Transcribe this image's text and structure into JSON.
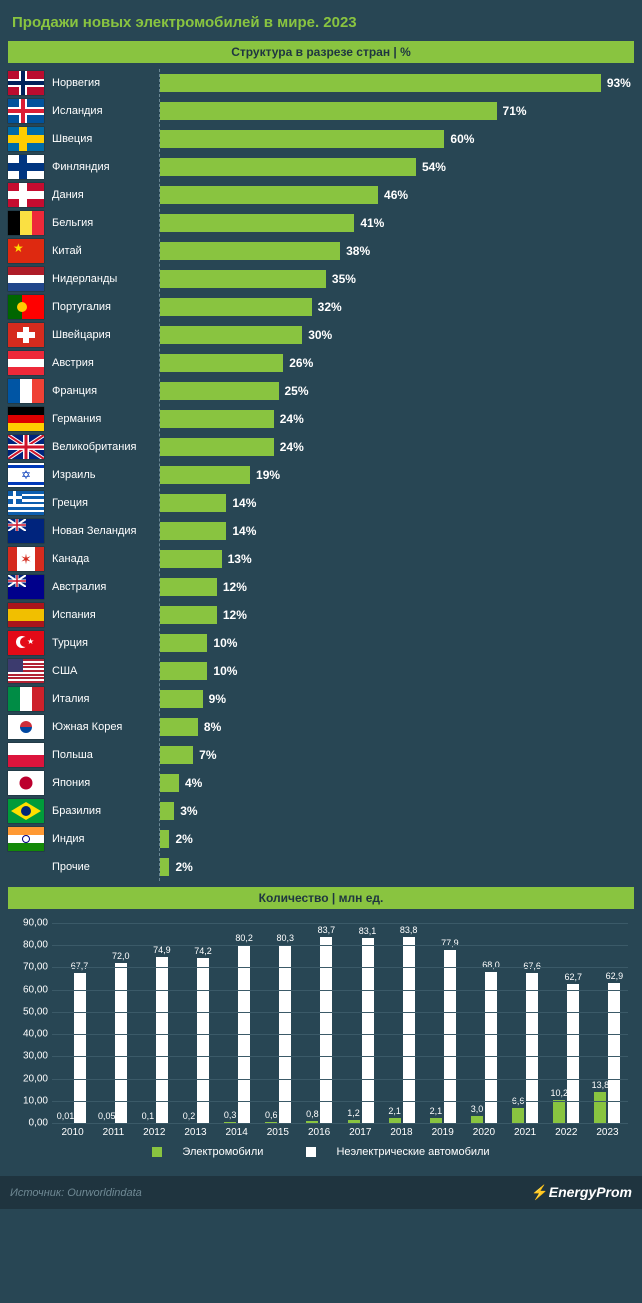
{
  "colors": {
    "background": "#284654",
    "accent": "#89c440",
    "bar_fill": "#89c440",
    "grid": "#3b5a68",
    "non_ev_bar": "#ffffff",
    "title_color": "#89c440",
    "footer_bg": "#1f343f",
    "source_color": "#6f8994"
  },
  "title": "Продажи новых электромобилей в мире. 2023",
  "hbar_chart": {
    "type": "horizontal_bar",
    "header": "Структура в разрезе стран | %",
    "max": 100,
    "bar_color": "#89c440",
    "rows": [
      {
        "country": "Норвегия",
        "value": 93,
        "label": "93%"
      },
      {
        "country": "Исландия",
        "value": 71,
        "label": "71%"
      },
      {
        "country": "Швеция",
        "value": 60,
        "label": "60%"
      },
      {
        "country": "Финляндия",
        "value": 54,
        "label": "54%"
      },
      {
        "country": "Дания",
        "value": 46,
        "label": "46%"
      },
      {
        "country": "Бельгия",
        "value": 41,
        "label": "41%"
      },
      {
        "country": "Китай",
        "value": 38,
        "label": "38%"
      },
      {
        "country": "Нидерланды",
        "value": 35,
        "label": "35%"
      },
      {
        "country": "Португалия",
        "value": 32,
        "label": "32%"
      },
      {
        "country": "Швейцария",
        "value": 30,
        "label": "30%"
      },
      {
        "country": "Австрия",
        "value": 26,
        "label": "26%"
      },
      {
        "country": "Франция",
        "value": 25,
        "label": "25%"
      },
      {
        "country": "Германия",
        "value": 24,
        "label": "24%"
      },
      {
        "country": "Великобритания",
        "value": 24,
        "label": "24%"
      },
      {
        "country": "Израиль",
        "value": 19,
        "label": "19%"
      },
      {
        "country": "Греция",
        "value": 14,
        "label": "14%"
      },
      {
        "country": "Новая Зеландия",
        "value": 14,
        "label": "14%"
      },
      {
        "country": "Канада",
        "value": 13,
        "label": "13%"
      },
      {
        "country": "Австралия",
        "value": 12,
        "label": "12%"
      },
      {
        "country": "Испания",
        "value": 12,
        "label": "12%"
      },
      {
        "country": "Турция",
        "value": 10,
        "label": "10%"
      },
      {
        "country": "США",
        "value": 10,
        "label": "10%"
      },
      {
        "country": "Италия",
        "value": 9,
        "label": "9%"
      },
      {
        "country": "Южная Корея",
        "value": 8,
        "label": "8%"
      },
      {
        "country": "Польша",
        "value": 7,
        "label": "7%"
      },
      {
        "country": "Япония",
        "value": 4,
        "label": "4%"
      },
      {
        "country": "Бразилия",
        "value": 3,
        "label": "3%"
      },
      {
        "country": "Индия",
        "value": 2,
        "label": "2%"
      },
      {
        "country": "Прочие",
        "value": 2,
        "label": "2%",
        "no_flag": true
      }
    ]
  },
  "col_chart": {
    "type": "grouped_column",
    "header": "Количество | млн ед.",
    "ymax": 90,
    "ytick_step": 10,
    "yticks": [
      "0,00",
      "10,00",
      "20,00",
      "30,00",
      "40,00",
      "50,00",
      "60,00",
      "70,00",
      "80,00",
      "90,00"
    ],
    "ev_color": "#89c440",
    "non_color": "#ffffff",
    "legend": {
      "ev": "Электромобили",
      "non": "Неэлектрические автомобили"
    },
    "years": [
      {
        "year": "2010",
        "ev": 0.01,
        "ev_label": "0,01",
        "non": 67.7,
        "non_label": "67,7"
      },
      {
        "year": "2011",
        "ev": 0.05,
        "ev_label": "0,05",
        "non": 72.0,
        "non_label": "72,0"
      },
      {
        "year": "2012",
        "ev": 0.1,
        "ev_label": "0,1",
        "non": 74.9,
        "non_label": "74,9"
      },
      {
        "year": "2013",
        "ev": 0.2,
        "ev_label": "0,2",
        "non": 74.2,
        "non_label": "74,2"
      },
      {
        "year": "2014",
        "ev": 0.3,
        "ev_label": "0,3",
        "non": 80.2,
        "non_label": "80,2"
      },
      {
        "year": "2015",
        "ev": 0.6,
        "ev_label": "0,6",
        "non": 80.3,
        "non_label": "80,3"
      },
      {
        "year": "2016",
        "ev": 0.8,
        "ev_label": "0,8",
        "non": 83.7,
        "non_label": "83,7"
      },
      {
        "year": "2017",
        "ev": 1.2,
        "ev_label": "1,2",
        "non": 83.1,
        "non_label": "83,1"
      },
      {
        "year": "2018",
        "ev": 2.1,
        "ev_label": "2,1",
        "non": 83.8,
        "non_label": "83,8"
      },
      {
        "year": "2019",
        "ev": 2.1,
        "ev_label": "2,1",
        "non": 77.9,
        "non_label": "77,9"
      },
      {
        "year": "2020",
        "ev": 3.0,
        "ev_label": "3,0",
        "non": 68.0,
        "non_label": "68,0"
      },
      {
        "year": "2021",
        "ev": 6.6,
        "ev_label": "6,6",
        "non": 67.6,
        "non_label": "67,6"
      },
      {
        "year": "2022",
        "ev": 10.2,
        "ev_label": "10,2",
        "non": 62.7,
        "non_label": "62,7"
      },
      {
        "year": "2023",
        "ev": 13.8,
        "ev_label": "13,8",
        "non": 62.9,
        "non_label": "62,9"
      }
    ]
  },
  "footer": {
    "source": "Источник: Ourworldindata",
    "brand": "EnergyProm"
  },
  "flags": {
    "Норвегия": {
      "type": "nordic",
      "bg": "#ba0c2f",
      "cross_outer": "#ffffff",
      "cross_inner": "#00205b"
    },
    "Исландия": {
      "type": "nordic",
      "bg": "#02529c",
      "cross_outer": "#ffffff",
      "cross_inner": "#dc1e35"
    },
    "Швеция": {
      "type": "nordic",
      "bg": "#006aa7",
      "cross_outer": "#fecc00",
      "cross_inner": "#fecc00"
    },
    "Финляндия": {
      "type": "nordic",
      "bg": "#ffffff",
      "cross_outer": "#003580",
      "cross_inner": "#003580"
    },
    "Дания": {
      "type": "nordic",
      "bg": "#c60c30",
      "cross_outer": "#ffffff",
      "cross_inner": "#ffffff"
    },
    "Бельгия": {
      "type": "v3",
      "c": [
        "#000000",
        "#fae042",
        "#ed2939"
      ]
    },
    "Китай": {
      "type": "solid",
      "bg": "#de2910",
      "star": "#ffde00"
    },
    "Нидерланды": {
      "type": "h3",
      "c": [
        "#ae1c28",
        "#ffffff",
        "#21468b"
      ]
    },
    "Португалия": {
      "type": "v2",
      "c": [
        "#006600",
        "#ff0000"
      ],
      "split": 0.4,
      "disc": "#ffcc00"
    },
    "Швейцария": {
      "type": "swiss",
      "bg": "#d52b1e",
      "cross": "#ffffff"
    },
    "Австрия": {
      "type": "h3",
      "c": [
        "#ed2939",
        "#ffffff",
        "#ed2939"
      ]
    },
    "Франция": {
      "type": "v3",
      "c": [
        "#0055a4",
        "#ffffff",
        "#ef4135"
      ]
    },
    "Германия": {
      "type": "h3",
      "c": [
        "#000000",
        "#dd0000",
        "#ffce00"
      ]
    },
    "Великобритания": {
      "type": "uk"
    },
    "Израиль": {
      "type": "israel"
    },
    "Греция": {
      "type": "greece"
    },
    "Новая Зеландия": {
      "type": "solid",
      "bg": "#00247d",
      "uk_canton": true
    },
    "Канада": {
      "type": "v3w",
      "c": [
        "#d52b1e",
        "#ffffff",
        "#d52b1e"
      ],
      "split": [
        0.25,
        0.5,
        0.25
      ],
      "leaf": "#d52b1e"
    },
    "Австралия": {
      "type": "solid",
      "bg": "#00008b",
      "uk_canton": true
    },
    "Испания": {
      "type": "h3w",
      "c": [
        "#aa151b",
        "#f1bf00",
        "#aa151b"
      ],
      "split": [
        0.25,
        0.5,
        0.25
      ]
    },
    "Турция": {
      "type": "solid",
      "bg": "#e30a17",
      "crescent": "#ffffff"
    },
    "США": {
      "type": "usa"
    },
    "Италия": {
      "type": "v3",
      "c": [
        "#008c45",
        "#ffffff",
        "#cd212a"
      ]
    },
    "Южная Корея": {
      "type": "korea"
    },
    "Польша": {
      "type": "h2",
      "c": [
        "#ffffff",
        "#dc143c"
      ]
    },
    "Япония": {
      "type": "japan"
    },
    "Бразилия": {
      "type": "brazil"
    },
    "Индия": {
      "type": "h3",
      "c": [
        "#ff9933",
        "#ffffff",
        "#138808"
      ],
      "wheel": "#000080"
    }
  }
}
